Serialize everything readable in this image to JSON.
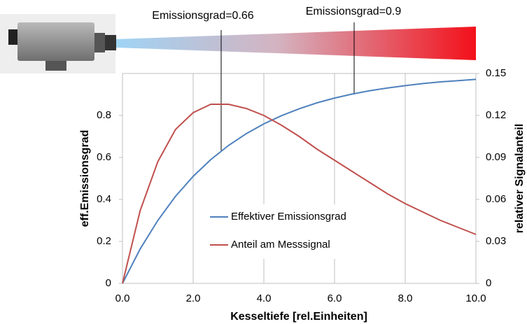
{
  "chart_data": {
    "type": "line",
    "annotations": [
      "Emissionsgrad=0.66",
      "Emissionsgrad=0.9"
    ],
    "xlabel": "Kesseltiefe [rel.Einheiten]",
    "ylabel": "eff.Emissionsgrad",
    "y2label": "relativer Signalanteil",
    "x": [
      0,
      0.5,
      1,
      1.5,
      2,
      2.5,
      3,
      3.5,
      4,
      4.5,
      5,
      5.5,
      6,
      6.5,
      7,
      7.5,
      8,
      8.5,
      9,
      9.5,
      10
    ],
    "series": [
      {
        "name": "Effektiver Emissionsgrad",
        "color": "#4f81bd",
        "values": [
          0,
          0.164,
          0.3,
          0.415,
          0.51,
          0.59,
          0.657,
          0.713,
          0.76,
          0.799,
          0.832,
          0.86,
          0.883,
          0.902,
          0.918,
          0.931,
          0.942,
          0.952,
          0.96,
          0.966,
          0.972
        ]
      },
      {
        "name": "Anteil am Messsignal",
        "color": "#c0504d",
        "axis": "y2",
        "values": [
          0,
          0.052,
          0.087,
          0.11,
          0.122,
          0.128,
          0.128,
          0.125,
          0.12,
          0.113,
          0.105,
          0.096,
          0.088,
          0.08,
          0.072,
          0.064,
          0.057,
          0.051,
          0.045,
          0.04,
          0.035
        ]
      }
    ],
    "xlim": [
      0,
      10
    ],
    "xticks": [
      {
        "value": 0,
        "label": "0.0"
      },
      {
        "value": 2,
        "label": "2.0"
      },
      {
        "value": 4,
        "label": "4.0"
      },
      {
        "value": 6,
        "label": "6.0"
      },
      {
        "value": 8,
        "label": "8.0"
      },
      {
        "value": 10,
        "label": "10.0"
      }
    ],
    "ylim": [
      0,
      1
    ],
    "yticks": [
      0,
      0.2,
      0.4,
      0.6,
      0.8
    ],
    "y2lim": [
      0,
      0.15
    ],
    "y2ticks": [
      0,
      0.03,
      0.06,
      0.09,
      0.12,
      0.15
    ],
    "grid": "x"
  }
}
